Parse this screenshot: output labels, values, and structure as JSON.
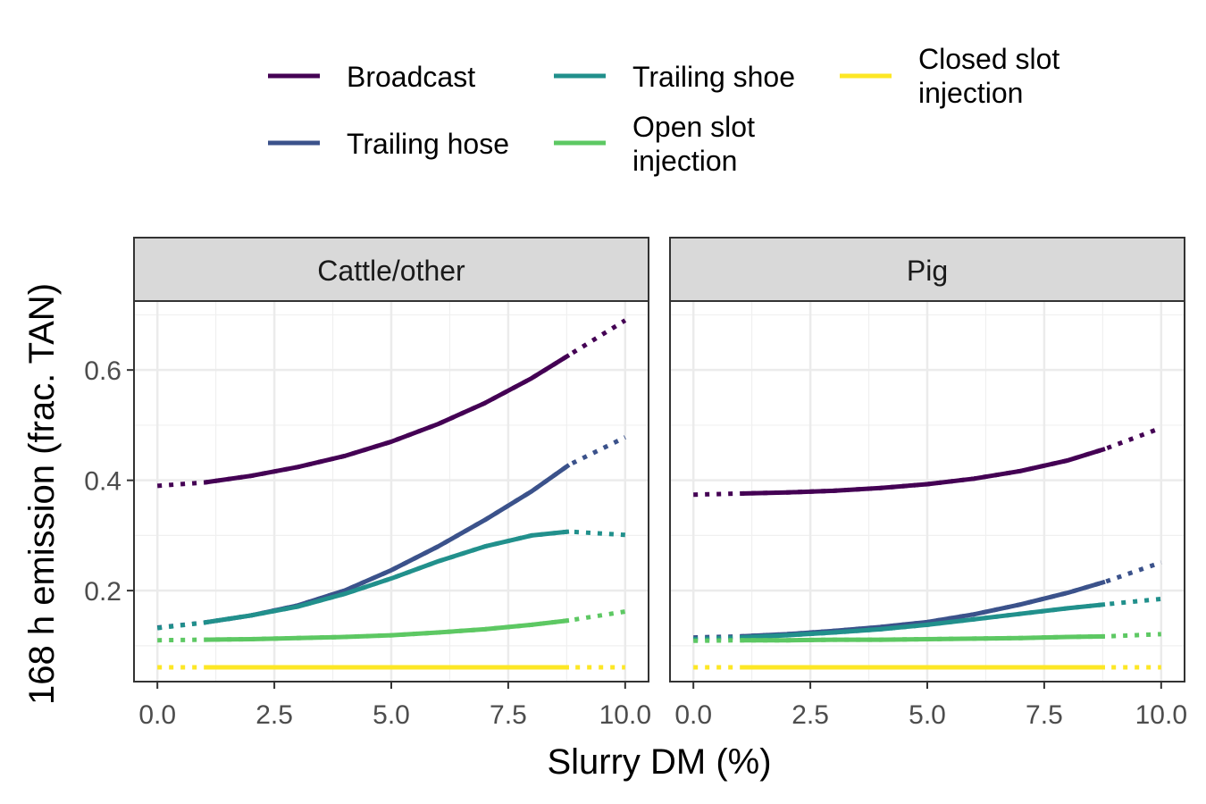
{
  "chart_data": {
    "type": "line",
    "xlabel": "Slurry DM (%)",
    "ylabel": "168 h emission (frac. TAN)",
    "xlim": [
      -0.5,
      10.5
    ],
    "ylim": [
      0.035,
      0.725
    ],
    "xticks": [
      "0.0",
      "2.5",
      "5.0",
      "7.5",
      "10.0"
    ],
    "yticks": [
      "0.2",
      "0.4",
      "0.6"
    ],
    "grid": true,
    "legend_position": "top",
    "legend": [
      {
        "name": "Broadcast",
        "color": "#440154"
      },
      {
        "name": "Trailing hose",
        "color": "#3b528b"
      },
      {
        "name": "Trailing shoe",
        "color": "#21908c"
      },
      {
        "name": "Open slot injection",
        "color": "#5dc863"
      },
      {
        "name": "Closed slot injection",
        "color": "#fde725"
      }
    ],
    "legend_text": {
      "broadcast": "Broadcast",
      "trailing_hose": "Trailing hose",
      "trailing_shoe": "Trailing shoe",
      "open_slot_1": "Open slot",
      "open_slot_2": "injection",
      "closed_slot_1": "Closed slot",
      "closed_slot_2": "injection"
    },
    "solid_range": [
      1.0,
      8.8
    ],
    "panels": [
      {
        "title": "Cattle/other",
        "x": [
          0,
          1,
          2,
          3,
          4,
          5,
          6,
          7,
          8,
          8.8,
          10
        ],
        "series": [
          {
            "name": "Broadcast",
            "values": [
              0.39,
              0.396,
              0.408,
              0.424,
              0.444,
              0.47,
              0.502,
              0.54,
              0.585,
              0.627,
              0.69
            ]
          },
          {
            "name": "Trailing hose",
            "values": [
              0.133,
              0.142,
              0.155,
              0.173,
              0.2,
              0.237,
              0.28,
              0.328,
              0.38,
              0.428,
              0.478
            ]
          },
          {
            "name": "Trailing shoe",
            "values": [
              0.132,
              0.142,
              0.155,
              0.171,
              0.194,
              0.222,
              0.253,
              0.28,
              0.3,
              0.307,
              0.301
            ]
          },
          {
            "name": "Open slot injection",
            "values": [
              0.11,
              0.111,
              0.112,
              0.114,
              0.116,
              0.119,
              0.124,
              0.13,
              0.138,
              0.146,
              0.162
            ]
          },
          {
            "name": "Closed slot injection",
            "values": [
              0.061,
              0.061,
              0.061,
              0.061,
              0.061,
              0.061,
              0.061,
              0.061,
              0.061,
              0.061,
              0.061
            ]
          }
        ]
      },
      {
        "title": "Pig",
        "x": [
          0,
          1,
          2,
          3,
          4,
          5,
          6,
          7,
          8,
          8.8,
          10
        ],
        "series": [
          {
            "name": "Broadcast",
            "values": [
              0.374,
              0.376,
              0.378,
              0.381,
              0.386,
              0.393,
              0.403,
              0.417,
              0.436,
              0.457,
              0.495
            ]
          },
          {
            "name": "Trailing hose",
            "values": [
              0.115,
              0.117,
              0.121,
              0.127,
              0.134,
              0.143,
              0.157,
              0.175,
              0.196,
              0.216,
              0.251
            ]
          },
          {
            "name": "Trailing shoe",
            "values": [
              0.112,
              0.115,
              0.119,
              0.124,
              0.13,
              0.138,
              0.148,
              0.158,
              0.168,
              0.175,
              0.185
            ]
          },
          {
            "name": "Open slot injection",
            "values": [
              0.109,
              0.11,
              0.11,
              0.111,
              0.111,
              0.112,
              0.113,
              0.114,
              0.116,
              0.117,
              0.121
            ]
          },
          {
            "name": "Closed slot injection",
            "values": [
              0.061,
              0.061,
              0.061,
              0.061,
              0.061,
              0.061,
              0.061,
              0.061,
              0.061,
              0.061,
              0.061
            ]
          }
        ]
      }
    ]
  }
}
